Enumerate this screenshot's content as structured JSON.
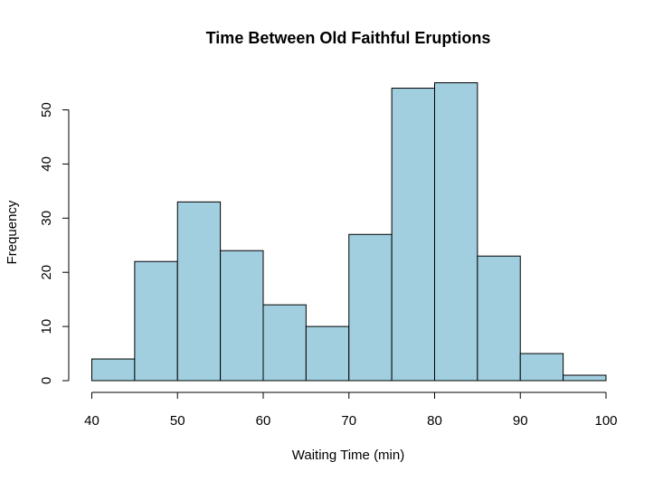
{
  "chart_data": {
    "type": "bar",
    "subtype": "histogram",
    "title": "Time Between Old Faithful Eruptions",
    "xlabel": "Waiting Time (min)",
    "ylabel": "Frequency",
    "bins": [
      {
        "from": 40,
        "to": 45,
        "count": 4
      },
      {
        "from": 45,
        "to": 50,
        "count": 22
      },
      {
        "from": 50,
        "to": 55,
        "count": 33
      },
      {
        "from": 55,
        "to": 60,
        "count": 24
      },
      {
        "from": 60,
        "to": 65,
        "count": 14
      },
      {
        "from": 65,
        "to": 70,
        "count": 10
      },
      {
        "from": 70,
        "to": 75,
        "count": 27
      },
      {
        "from": 75,
        "to": 80,
        "count": 54
      },
      {
        "from": 80,
        "to": 85,
        "count": 55
      },
      {
        "from": 85,
        "to": 90,
        "count": 23
      },
      {
        "from": 90,
        "to": 95,
        "count": 5
      },
      {
        "from": 95,
        "to": 100,
        "count": 1
      }
    ],
    "xlim": [
      40,
      100
    ],
    "ylim": [
      0,
      55
    ],
    "x_ticks": [
      "40",
      "50",
      "60",
      "70",
      "80",
      "90",
      "100"
    ],
    "y_ticks": [
      "0",
      "10",
      "20",
      "30",
      "40",
      "50"
    ],
    "bar_color": "#a1cfe0",
    "grid": false,
    "legend": false
  }
}
